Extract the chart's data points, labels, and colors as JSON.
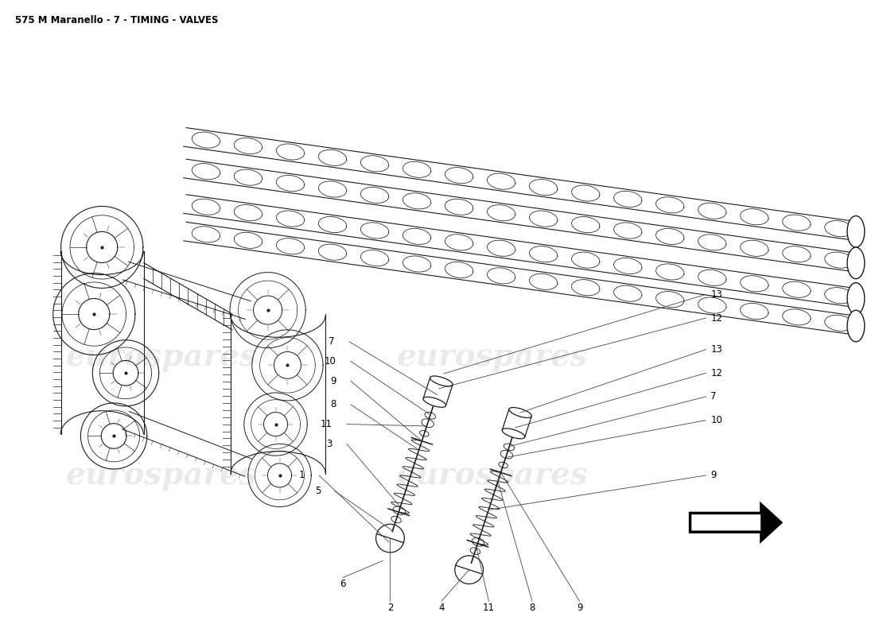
{
  "title": "575 M Maranello - 7 - TIMING - VALVES",
  "title_fontsize": 8.5,
  "bg_color": "#ffffff",
  "line_color": "#1a1a1a",
  "watermark_color": "#cccccc",
  "watermark_text": "eurospares",
  "figsize": [
    11.0,
    8.0
  ],
  "dpi": 100,
  "arrow_color": "#333333"
}
